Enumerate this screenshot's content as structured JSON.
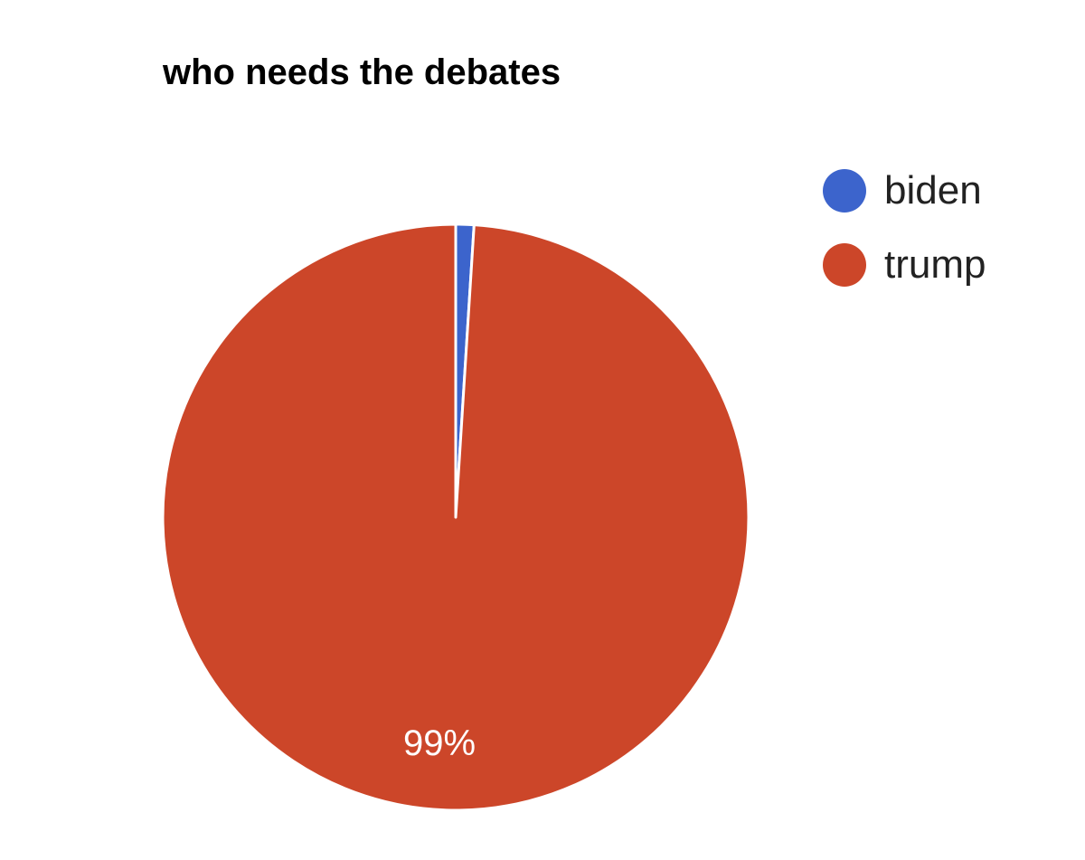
{
  "chart_data": {
    "type": "pie",
    "title": "who needs the debates",
    "slices": [
      {
        "label": "biden",
        "value": 1,
        "color": "#3c64cc"
      },
      {
        "label": "trump",
        "value": 99,
        "color": "#cc4629"
      }
    ],
    "data_labels": [
      {
        "slice": "trump",
        "text": "99%"
      }
    ],
    "legend_position": "right"
  }
}
